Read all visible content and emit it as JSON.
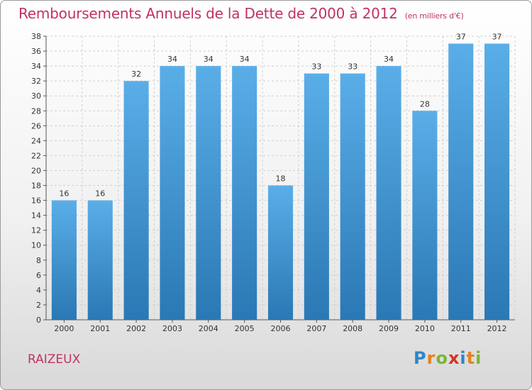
{
  "title": "Remboursements Annuels de la Dette de 2000 à 2012",
  "subtitle": "(en milliers d'€)",
  "commune": "RAIZEUX",
  "logo": {
    "letters": [
      "P",
      "r",
      "o",
      "x",
      "i",
      "t",
      "i"
    ],
    "colors": [
      "#2e86c8",
      "#e8801e",
      "#7cb536",
      "#d8322c",
      "#2e86c8",
      "#e8801e",
      "#7cb536"
    ]
  },
  "colors": {
    "bar_top": "#5aaee8",
    "bar_bottom": "#2a78b4",
    "grid": "#cfcfcf",
    "accent": "#c0335f"
  },
  "chart_data": {
    "type": "bar",
    "title": "Remboursements Annuels de la Dette de 2000 à 2012",
    "subtitle": "(en milliers d'€)",
    "xlabel": "",
    "ylabel": "",
    "categories": [
      "2000",
      "2001",
      "2002",
      "2003",
      "2004",
      "2005",
      "2006",
      "2007",
      "2008",
      "2009",
      "2010",
      "2011",
      "2012"
    ],
    "values": [
      16,
      16,
      32,
      34,
      34,
      34,
      18,
      33,
      33,
      34,
      28,
      37,
      37
    ],
    "ylim": [
      0,
      38
    ],
    "yticks": [
      0,
      2,
      4,
      6,
      8,
      10,
      12,
      14,
      16,
      18,
      20,
      22,
      24,
      26,
      28,
      30,
      32,
      34,
      36,
      38
    ],
    "grid": true,
    "legend": "none"
  }
}
